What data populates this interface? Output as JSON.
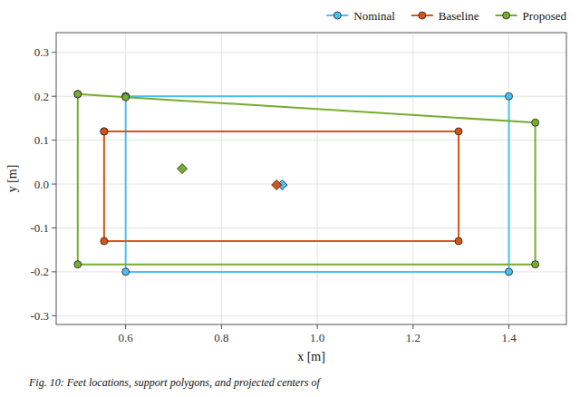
{
  "chart_data": {
    "type": "line",
    "xlabel": "x [m]",
    "ylabel": "y [m]",
    "caption": "Fig. 10: Feet locations, support polygons, and projected centers of",
    "xlim": [
      0.455,
      1.52
    ],
    "ylim": [
      -0.32,
      0.345
    ],
    "xticks": [
      0.6,
      0.8,
      {
        "value": 1,
        "label": "1.0"
      },
      1.2,
      1.4
    ],
    "yticks": [
      -0.3,
      -0.2,
      -0.1,
      {
        "value": 0,
        "label": "0.0"
      },
      0.1,
      0.2,
      0.3
    ],
    "grid": true,
    "legend": "upper right",
    "series": [
      {
        "name": "Nominal",
        "color": "#4DBEEE",
        "marker": "circle",
        "x": [
          0.6,
          1.4,
          1.4,
          0.6,
          0.6
        ],
        "values": [
          0.2,
          0.2,
          -0.2,
          -0.2,
          0.2
        ],
        "centroid": {
          "x": 0.927,
          "y": -0.002
        }
      },
      {
        "name": "Baseline",
        "color": "#D95319",
        "marker": "circle",
        "x": [
          0.555,
          1.295,
          1.295,
          0.555,
          0.555
        ],
        "values": [
          0.12,
          0.12,
          -0.13,
          -0.13,
          0.12
        ],
        "centroid": {
          "x": 0.915,
          "y": -0.002
        }
      },
      {
        "name": "Proposed",
        "color": "#77AC30",
        "marker": "circle",
        "x": [
          0.5,
          0.6,
          1.455,
          1.455,
          0.5,
          0.5
        ],
        "values": [
          0.205,
          0.198,
          0.14,
          -0.183,
          -0.183,
          0.205
        ],
        "centroid": {
          "x": 0.718,
          "y": 0.035
        }
      }
    ]
  }
}
